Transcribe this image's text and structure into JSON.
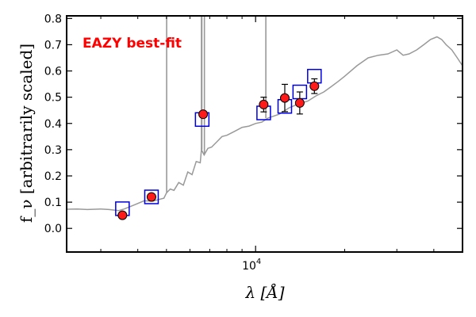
{
  "chart_data": {
    "type": "scatter",
    "title": "",
    "annotation": "EAZY best-fit",
    "xlabel": "λ [Å]",
    "ylabel": "f_ν [arbitrarily scaled]",
    "x_scale": "log",
    "xlim": [
      2300,
      50000
    ],
    "ylim": [
      -0.09,
      0.81
    ],
    "yticks": [
      0.0,
      0.1,
      0.2,
      0.3,
      0.4,
      0.5,
      0.6,
      0.7,
      0.8
    ],
    "ytick_labels": [
      "0.0",
      "0.1",
      "0.2",
      "0.3",
      "0.4",
      "0.5",
      "0.6",
      "0.7",
      "0.8"
    ],
    "xtick_major": [
      10000
    ],
    "xtick_major_label": "10^4",
    "xtick_minor": [
      3000,
      4000,
      5000,
      6000,
      7000,
      8000,
      9000,
      20000,
      30000,
      40000
    ],
    "series": [
      {
        "kind": "model_spectrum",
        "points": [
          [
            2300,
            0.073
          ],
          [
            2500,
            0.074
          ],
          [
            2700,
            0.072
          ],
          [
            3000,
            0.074
          ],
          [
            3200,
            0.072
          ],
          [
            3450,
            0.068
          ],
          [
            3600,
            0.074
          ],
          [
            3900,
            0.09
          ],
          [
            4200,
            0.105
          ],
          [
            4500,
            0.104
          ],
          [
            4700,
            0.11
          ],
          [
            4900,
            0.115
          ],
          [
            5000,
            0.135
          ],
          [
            5150,
            0.15
          ],
          [
            5300,
            0.145
          ],
          [
            5500,
            0.175
          ],
          [
            5700,
            0.165
          ],
          [
            5900,
            0.215
          ],
          [
            6100,
            0.205
          ],
          [
            6300,
            0.255
          ],
          [
            6500,
            0.25
          ],
          [
            6563,
            0.3
          ],
          [
            6700,
            0.28
          ],
          [
            6900,
            0.305
          ],
          [
            7100,
            0.31
          ],
          [
            7400,
            0.33
          ],
          [
            7700,
            0.35
          ],
          [
            8000,
            0.355
          ],
          [
            8500,
            0.37
          ],
          [
            9000,
            0.385
          ],
          [
            9500,
            0.39
          ],
          [
            10000,
            0.4
          ],
          [
            10500,
            0.405
          ],
          [
            11000,
            0.42
          ],
          [
            12000,
            0.435
          ],
          [
            13000,
            0.46
          ],
          [
            14000,
            0.475
          ],
          [
            15000,
            0.485
          ],
          [
            16000,
            0.505
          ],
          [
            17000,
            0.52
          ],
          [
            18000,
            0.54
          ],
          [
            19000,
            0.56
          ],
          [
            20000,
            0.58
          ],
          [
            22000,
            0.62
          ],
          [
            24000,
            0.65
          ],
          [
            26000,
            0.66
          ],
          [
            28000,
            0.665
          ],
          [
            30000,
            0.68
          ],
          [
            31500,
            0.66
          ],
          [
            33000,
            0.665
          ],
          [
            35000,
            0.68
          ],
          [
            37000,
            0.7
          ],
          [
            39000,
            0.72
          ],
          [
            41000,
            0.73
          ],
          [
            42500,
            0.72
          ],
          [
            44000,
            0.7
          ],
          [
            46000,
            0.68
          ],
          [
            48000,
            0.65
          ],
          [
            50000,
            0.62
          ]
        ],
        "emission_lines": [
          {
            "x": 5007,
            "y": 1.0
          },
          {
            "x": 6548,
            "y": 0.3
          },
          {
            "x": 6563,
            "y": 1.0
          },
          {
            "x": 6583,
            "y": 1.0
          },
          {
            "x": 6716,
            "y": 1.0
          },
          {
            "x": 10830,
            "y": 1.0
          }
        ],
        "color": "#999999"
      },
      {
        "kind": "model_photometry",
        "marker": "open-square",
        "color": "#0000dd",
        "points": [
          [
            3550,
            0.075
          ],
          [
            4450,
            0.12
          ],
          [
            6600,
            0.415
          ],
          [
            10650,
            0.44
          ],
          [
            12550,
            0.465
          ],
          [
            14100,
            0.52
          ],
          [
            15800,
            0.58
          ]
        ]
      },
      {
        "kind": "observed_photometry",
        "marker": "filled-circle",
        "color": "#ff1a1a",
        "points": [
          {
            "x": 3550,
            "y": 0.05,
            "err": 0.012
          },
          {
            "x": 4450,
            "y": 0.12,
            "err": 0.01
          },
          {
            "x": 6650,
            "y": 0.435,
            "err": 0.012
          },
          {
            "x": 10650,
            "y": 0.472,
            "err": 0.028
          },
          {
            "x": 12550,
            "y": 0.497,
            "err": 0.052
          },
          {
            "x": 14100,
            "y": 0.478,
            "err": 0.042
          },
          {
            "x": 15800,
            "y": 0.542,
            "err": 0.028
          }
        ]
      }
    ],
    "colors": {
      "annotation": "#ff0000",
      "frame": "#000000"
    }
  }
}
